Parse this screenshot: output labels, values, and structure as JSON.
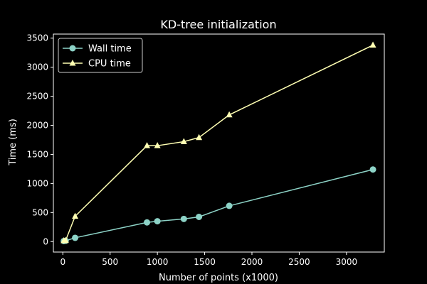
{
  "chart_data": {
    "type": "line",
    "title": "KD-tree initialization",
    "xlabel": "Number of points (x1000)",
    "ylabel": "Time (ms)",
    "xlim": [
      -100,
      3400
    ],
    "ylim": [
      -180,
      3570
    ],
    "xticks": [
      0,
      500,
      1000,
      1500,
      2000,
      2500,
      3000
    ],
    "yticks": [
      0,
      500,
      1000,
      1500,
      2000,
      2500,
      3000,
      3500
    ],
    "grid": false,
    "legend_position": "upper-left",
    "background": "#000000",
    "foreground": "#ffffff",
    "series": [
      {
        "name": "Wall time",
        "color": "#8dd3c7",
        "marker": "circle",
        "x": [
          10,
          30,
          130,
          890,
          1000,
          1280,
          1440,
          1760,
          3280
        ],
        "y": [
          10,
          15,
          65,
          330,
          350,
          390,
          425,
          615,
          1240
        ]
      },
      {
        "name": "CPU time",
        "color": "#ffffb3",
        "marker": "triangle",
        "x": [
          10,
          30,
          130,
          890,
          1000,
          1280,
          1440,
          1760,
          3280
        ],
        "y": [
          15,
          20,
          435,
          1650,
          1650,
          1720,
          1790,
          2180,
          3380
        ]
      }
    ]
  }
}
